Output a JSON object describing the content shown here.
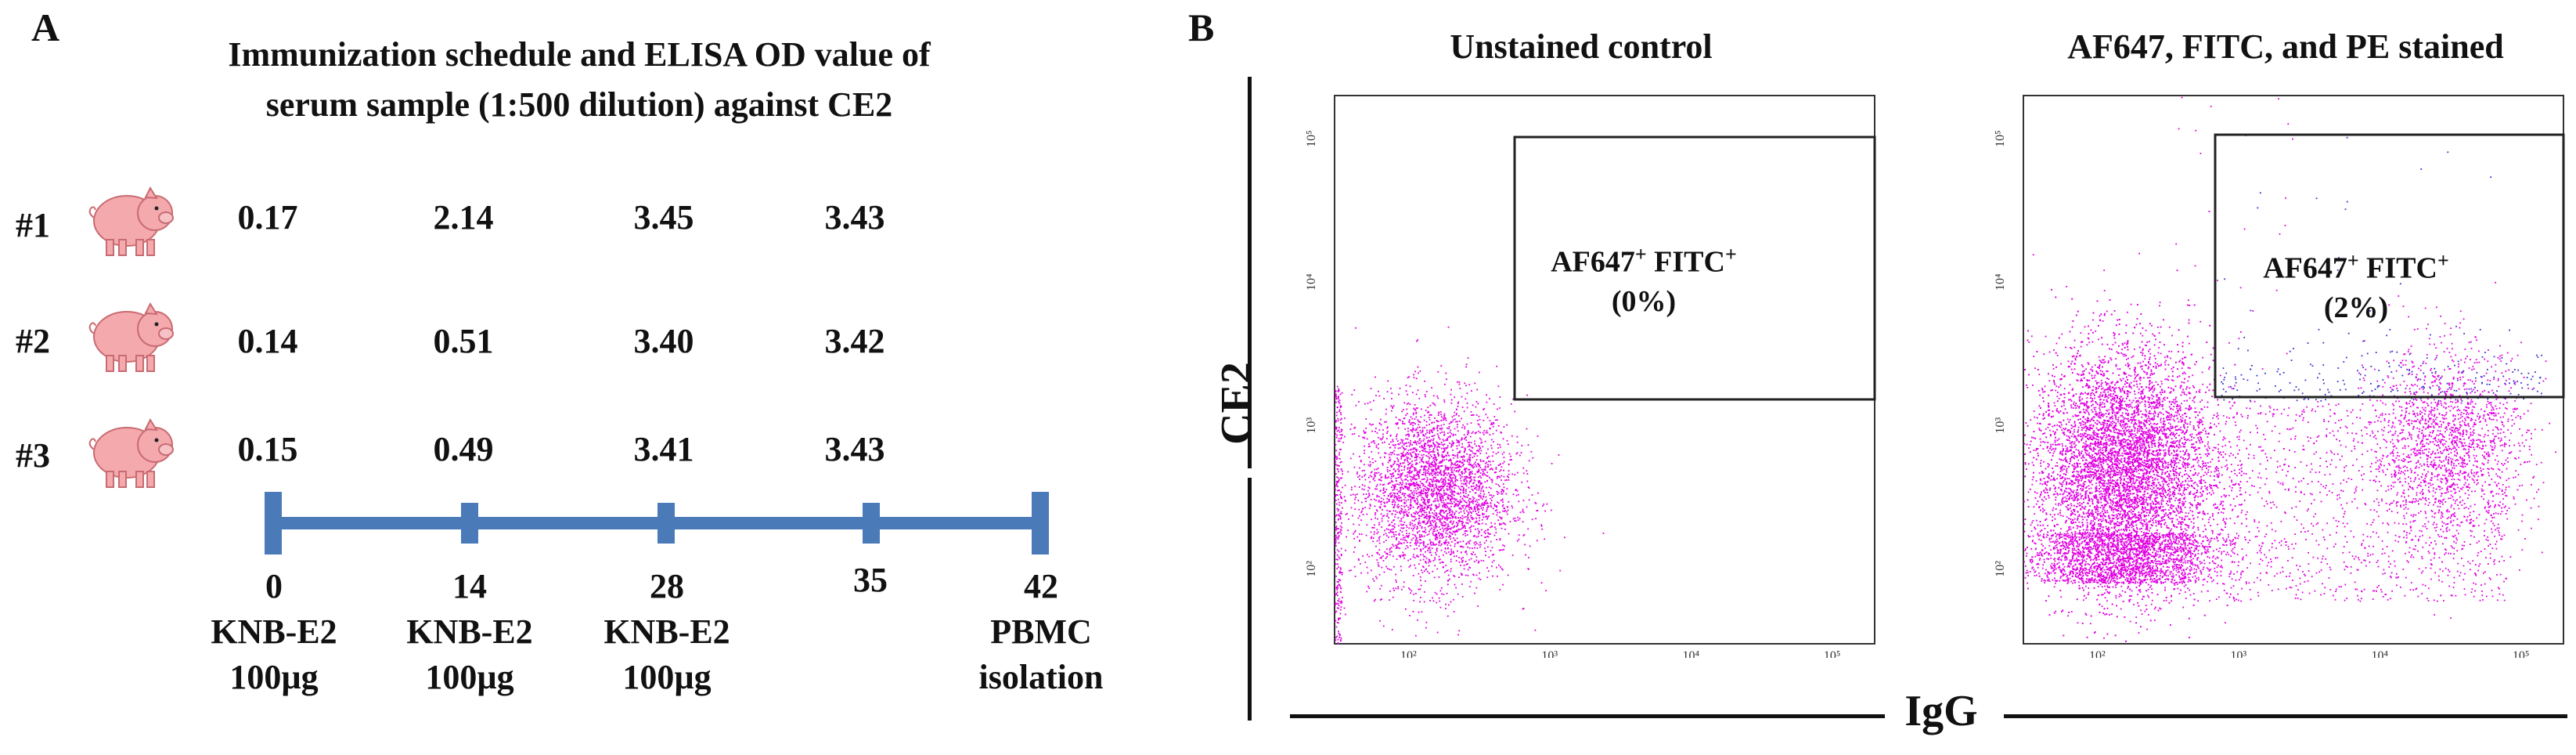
{
  "panelA": {
    "letter": "A",
    "title_line1": "Immunization schedule and ELISA OD value of",
    "title_line2": "serum sample (1:500 dilution) against CE2",
    "pigs": [
      {
        "label": "#1",
        "od": [
          "0.17",
          "2.14",
          "3.45",
          "3.43"
        ]
      },
      {
        "label": "#2",
        "od": [
          "0.14",
          "0.51",
          "3.40",
          "3.42"
        ]
      },
      {
        "label": "#3",
        "od": [
          "0.15",
          "0.49",
          "3.41",
          "3.43"
        ]
      }
    ],
    "timeline": [
      {
        "day": "0",
        "line1": "KNB-E2",
        "line2": "100µg"
      },
      {
        "day": "14",
        "line1": "KNB-E2",
        "line2": "100µg"
      },
      {
        "day": "28",
        "line1": "KNB-E2",
        "line2": "100µg"
      },
      {
        "day": "35",
        "line1": "",
        "line2": ""
      },
      {
        "day": "42",
        "line1": "PBMC",
        "line2": "isolation"
      }
    ],
    "timeline_color": "#4a7ab8"
  },
  "panelB": {
    "letter": "B",
    "y_axis_title": "CE2",
    "x_axis_title": "IgG",
    "plots": [
      {
        "title": "Unstained control",
        "gate_label": "AF647",
        "gate_label2": "FITC",
        "gate_sup": "+",
        "gate_pct": "(0%)"
      },
      {
        "title": "AF647, FITC, and PE stained",
        "gate_label": "AF647",
        "gate_label2": "FITC",
        "gate_sup": "+",
        "gate_pct": "(2%)"
      }
    ],
    "x_ticks": [
      "10²",
      "10³",
      "10⁴",
      "10⁵"
    ],
    "y_ticks": [
      "10²",
      "10³",
      "10⁴",
      "10⁵"
    ],
    "dot_color": "#e000e0",
    "gate_dot_color": "#3333cc"
  },
  "chart_data": [
    {
      "type": "scatter",
      "title": "Unstained control",
      "xlabel": "IgG",
      "ylabel": "CE2",
      "x_scale": "log",
      "y_scale": "log",
      "xlim": [
        30,
        200000
      ],
      "ylim": [
        30,
        200000
      ],
      "gate": {
        "name": "AF647+ FITC+",
        "x_range": [
          700,
          200000
        ],
        "y_range": [
          1500,
          150000
        ],
        "percent": 0
      },
      "populations": [
        {
          "name": "negative",
          "x_center": 150,
          "y_center": 350,
          "events": "dense"
        }
      ]
    },
    {
      "type": "scatter",
      "title": "AF647, FITC, and PE stained",
      "xlabel": "IgG",
      "ylabel": "CE2",
      "x_scale": "log",
      "y_scale": "log",
      "xlim": [
        30,
        200000
      ],
      "ylim": [
        30,
        200000
      ],
      "gate": {
        "name": "AF647+ FITC+",
        "x_range": [
          700,
          200000
        ],
        "y_range": [
          1500,
          150000
        ],
        "percent": 2
      },
      "populations": [
        {
          "name": "IgG-negative",
          "x_center": 150,
          "y_center": 500,
          "events": "very dense"
        },
        {
          "name": "IgG-positive",
          "x_center": 30000,
          "y_center": 700,
          "events": "moderate"
        },
        {
          "name": "double-positive (gate)",
          "x_center": 10000,
          "y_center": 2000,
          "events": "sparse"
        }
      ]
    }
  ]
}
